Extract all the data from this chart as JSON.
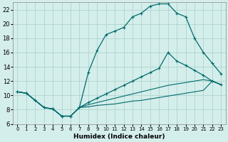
{
  "xlabel": "Humidex (Indice chaleur)",
  "x": [
    0,
    1,
    2,
    3,
    4,
    5,
    6,
    7,
    8,
    9,
    10,
    11,
    12,
    13,
    14,
    15,
    16,
    17,
    18,
    19,
    20,
    21,
    22,
    23
  ],
  "main_curve": [
    10.5,
    10.3,
    9.3,
    8.3,
    8.1,
    7.1,
    7.1,
    8.3,
    13.2,
    16.3,
    18.5,
    19.0,
    19.5,
    21.0,
    21.5,
    22.5,
    22.8,
    22.8,
    21.5,
    21.0,
    18.0,
    16.0,
    14.5,
    13.0
  ],
  "curve2": [
    10.5,
    10.3,
    9.3,
    8.3,
    8.1,
    7.1,
    7.1,
    8.3,
    9.0,
    9.6,
    10.2,
    10.8,
    11.4,
    12.0,
    12.6,
    13.2,
    13.8,
    16.0,
    14.8,
    14.2,
    13.5,
    12.8,
    12.0,
    11.5
  ],
  "curve3": [
    10.5,
    10.3,
    9.3,
    8.3,
    8.1,
    7.1,
    7.1,
    8.3,
    8.7,
    9.0,
    9.3,
    9.6,
    9.9,
    10.2,
    10.5,
    10.8,
    11.1,
    11.4,
    11.6,
    11.8,
    12.0,
    12.2,
    12.0,
    11.5
  ],
  "curve4": [
    10.5,
    10.3,
    9.3,
    8.3,
    8.1,
    7.1,
    7.1,
    8.3,
    8.4,
    8.6,
    8.7,
    8.8,
    9.0,
    9.2,
    9.3,
    9.5,
    9.7,
    9.9,
    10.1,
    10.3,
    10.5,
    10.7,
    12.0,
    11.5
  ],
  "bg_color": "#d4eeeb",
  "grid_color": "#aed4cf",
  "line_color": "#006b6b",
  "ylim": [
    6,
    23
  ],
  "yticks": [
    6,
    8,
    10,
    12,
    14,
    16,
    18,
    20,
    22
  ],
  "xlim": [
    -0.5,
    23.5
  ],
  "xtick_labels": [
    "0",
    "1",
    "2",
    "3",
    "4",
    "5",
    "6",
    "7",
    "8",
    "9",
    "10",
    "11",
    "12",
    "13",
    "14",
    "15",
    "16",
    "17",
    "18",
    "19",
    "20",
    "21",
    "22",
    "23"
  ]
}
